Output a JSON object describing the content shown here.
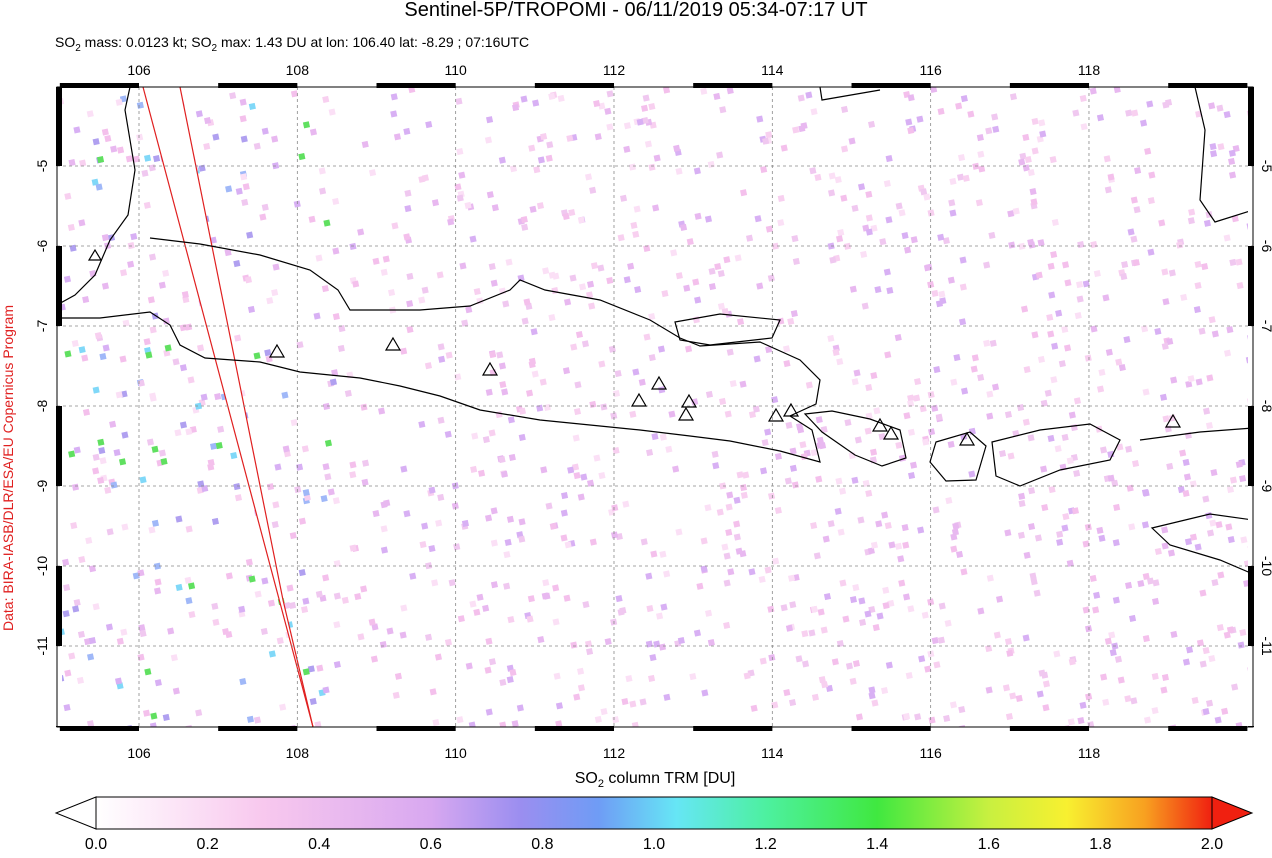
{
  "header": {
    "title": "Sentinel-5P/TROPOMI - 06/11/2019 05:34-07:17 UT",
    "subtitle": [
      "SO",
      "2",
      " mass: 0.0123 kt; SO",
      "2",
      " max: 1.43 DU at lon: 106.40 lat: -8.29 ; 07:16UTC"
    ]
  },
  "map": {
    "lon_labels": [
      "106",
      "108",
      "110",
      "112",
      "114",
      "116",
      "118"
    ],
    "lat_labels": [
      "-5",
      "-6",
      "-7",
      "-8",
      "-9",
      "-10",
      "-11"
    ]
  },
  "colorbar": {
    "title": [
      "SO",
      "2",
      " column TRM [DU]"
    ],
    "labels": [
      "0.0",
      "0.2",
      "0.4",
      "0.6",
      "0.8",
      "1.0",
      "1.2",
      "1.4",
      "1.6",
      "1.8",
      "2.0"
    ]
  },
  "credit": "Data: BIRA-IASB/DLR/ESA/EU Copernicus Program"
}
